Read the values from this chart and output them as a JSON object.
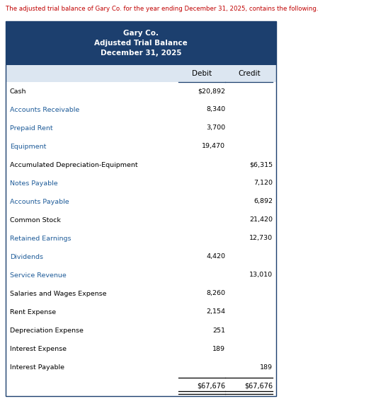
{
  "intro_text": "The adjusted trial balance of Gary Co. for the year ending December 31, 2025, contains the following.",
  "header_line1": "Gary Co.",
  "header_line2": "Adjusted Trial Balance",
  "header_line3": "December 31, 2025",
  "header_bg": "#1c3f6e",
  "header_text_color": "#ffffff",
  "col_header_bg": "#dce6f1",
  "col_header_text": "#000000",
  "debit_col_label": "Debit",
  "credit_col_label": "Credit",
  "rows": [
    {
      "account": "Cash",
      "debit": "$20,892",
      "credit": "",
      "acc_color": "#000000"
    },
    {
      "account": "Accounts Receivable",
      "debit": "8,340",
      "credit": "",
      "acc_color": "#1f5c99"
    },
    {
      "account": "Prepaid Rent",
      "debit": "3,700",
      "credit": "",
      "acc_color": "#1f5c99"
    },
    {
      "account": "Equipment",
      "debit": "19,470",
      "credit": "",
      "acc_color": "#1f5c99"
    },
    {
      "account": "Accumulated Depreciation-Equipment",
      "debit": "",
      "credit": "$6,315",
      "acc_color": "#000000"
    },
    {
      "account": "Notes Payable",
      "debit": "",
      "credit": "7,120",
      "acc_color": "#1f5c99"
    },
    {
      "account": "Accounts Payable",
      "debit": "",
      "credit": "6,892",
      "acc_color": "#1f5c99"
    },
    {
      "account": "Common Stock",
      "debit": "",
      "credit": "21,420",
      "acc_color": "#000000"
    },
    {
      "account": "Retained Earnings",
      "debit": "",
      "credit": "12,730",
      "acc_color": "#1f5c99"
    },
    {
      "account": "Dividends",
      "debit": "4,420",
      "credit": "",
      "acc_color": "#1f5c99"
    },
    {
      "account": "Service Revenue",
      "debit": "",
      "credit": "13,010",
      "acc_color": "#1f5c99"
    },
    {
      "account": "Salaries and Wages Expense",
      "debit": "8,260",
      "credit": "",
      "acc_color": "#000000"
    },
    {
      "account": "Rent Expense",
      "debit": "2,154",
      "credit": "",
      "acc_color": "#000000"
    },
    {
      "account": "Depreciation Expense",
      "debit": "251",
      "credit": "",
      "acc_color": "#000000"
    },
    {
      "account": "Interest Expense",
      "debit": "189",
      "credit": "",
      "acc_color": "#000000"
    },
    {
      "account": "Interest Payable",
      "debit": "",
      "credit": "189",
      "acc_color": "#000000"
    }
  ],
  "total_debit": "$67,676",
  "total_credit": "$67,676",
  "value_text_color": "#000000",
  "intro_color": "#c00000",
  "bg_color": "#ffffff",
  "table_border_color": "#1c3f6e",
  "line_color": "#000000"
}
